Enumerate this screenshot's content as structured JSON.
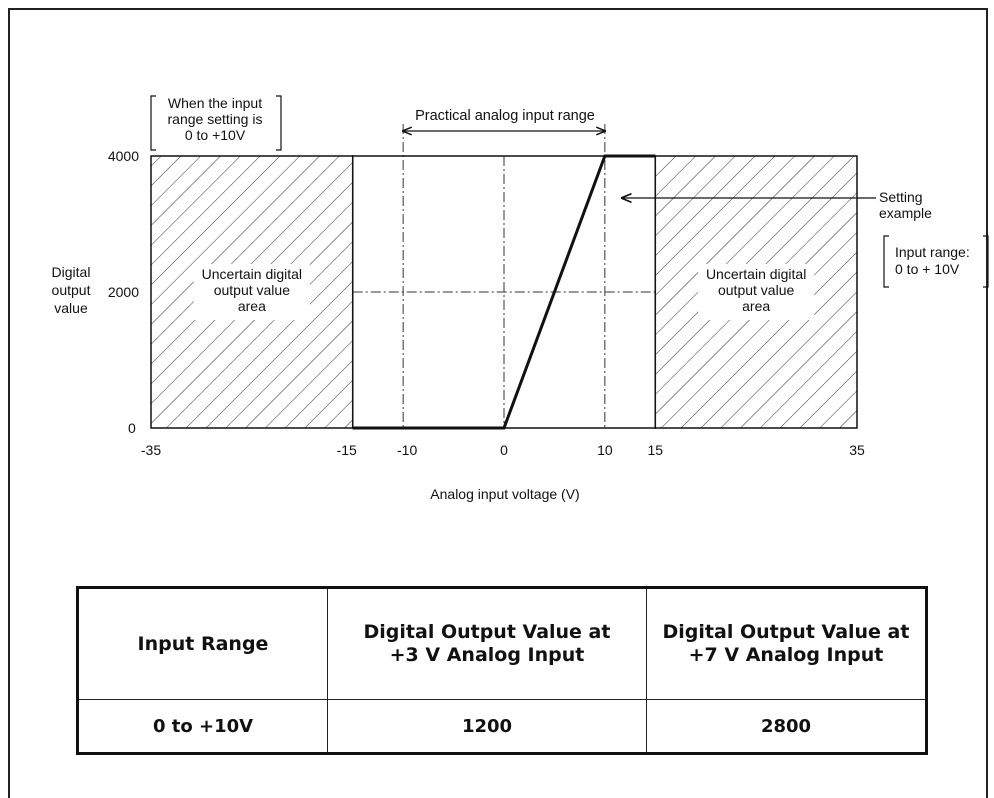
{
  "chart_data": {
    "type": "line",
    "xlabel": "Analog input voltage (V)",
    "ylabel_lines": [
      "Digital",
      "output",
      "value"
    ],
    "x_ticks": [
      "-35",
      "-15",
      "-10",
      "0",
      "10",
      "15",
      "35"
    ],
    "y_ticks": [
      "4000",
      "2000",
      "0"
    ],
    "xlim": [
      -35,
      35
    ],
    "ylim": [
      0,
      4000
    ],
    "series": [
      {
        "x": [
          -15,
          0,
          10,
          15
        ],
        "y": [
          0,
          0,
          4000,
          4000
        ]
      }
    ],
    "uncertain_regions": [
      [
        -35,
        -15
      ],
      [
        15,
        35
      ]
    ],
    "uncertain_label_lines": [
      "Uncertain digital",
      "output value",
      "area"
    ],
    "practical_range": [
      -10,
      10
    ],
    "practical_range_label": "Practical analog input range",
    "range_note_lines": [
      "When the input",
      "range setting is",
      "0 to +10V"
    ],
    "setting_example_lines": [
      "Setting",
      "example"
    ],
    "input_range_note_lines": [
      "Input range:",
      "0 to + 10V"
    ]
  },
  "table": {
    "headers": [
      [
        "Input Range"
      ],
      [
        "Digital Output Value at",
        "+3 V Analog Input"
      ],
      [
        "Digital Output Value at",
        "+7 V Analog Input"
      ]
    ],
    "rows": [
      [
        "0 to +10V",
        "1200",
        "2800"
      ]
    ]
  },
  "colors": {
    "line": "#111111",
    "hatch": "#333333",
    "background": "#ffffff"
  }
}
